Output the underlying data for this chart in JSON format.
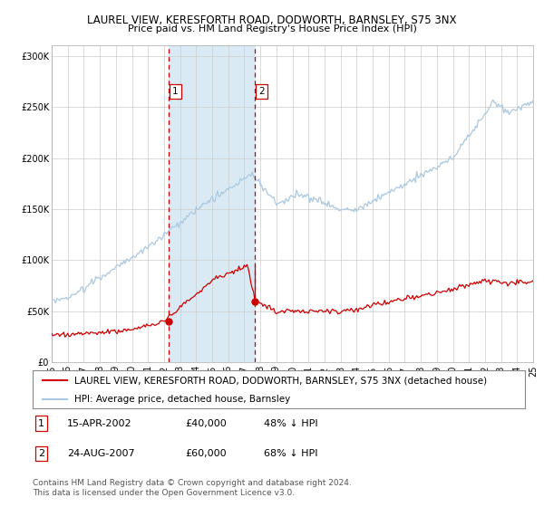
{
  "title": "LAUREL VIEW, KERESFORTH ROAD, DODWORTH, BARNSLEY, S75 3NX",
  "subtitle": "Price paid vs. HM Land Registry's House Price Index (HPI)",
  "ylim": [
    0,
    310000
  ],
  "yticks": [
    0,
    50000,
    100000,
    150000,
    200000,
    250000,
    300000
  ],
  "ytick_labels": [
    "£0",
    "£50K",
    "£100K",
    "£150K",
    "£200K",
    "£250K",
    "£300K"
  ],
  "hpi_color": "#aac8e0",
  "price_color": "#cc0000",
  "marker_color": "#cc0000",
  "vline_color": "#cc0000",
  "shade_color": "#daeaf5",
  "grid_color": "#cccccc",
  "bg_color": "#ffffff",
  "sale1_date_num": 2002.28,
  "sale1_price": 40000,
  "sale1_label": "1",
  "sale2_date_num": 2007.64,
  "sale2_price": 60000,
  "sale2_label": "2",
  "legend_entries": [
    "LAUREL VIEW, KERESFORTH ROAD, DODWORTH, BARNSLEY, S75 3NX (detached house)",
    "HPI: Average price, detached house, Barnsley"
  ],
  "table_rows": [
    [
      "1",
      "15-APR-2002",
      "£40,000",
      "48% ↓ HPI"
    ],
    [
      "2",
      "24-AUG-2007",
      "£60,000",
      "68% ↓ HPI"
    ]
  ],
  "footnote": "Contains HM Land Registry data © Crown copyright and database right 2024.\nThis data is licensed under the Open Government Licence v3.0.",
  "title_fontsize": 8.5,
  "subtitle_fontsize": 8,
  "tick_fontsize": 7,
  "legend_fontsize": 7.5,
  "table_fontsize": 8,
  "footnote_fontsize": 6.5
}
